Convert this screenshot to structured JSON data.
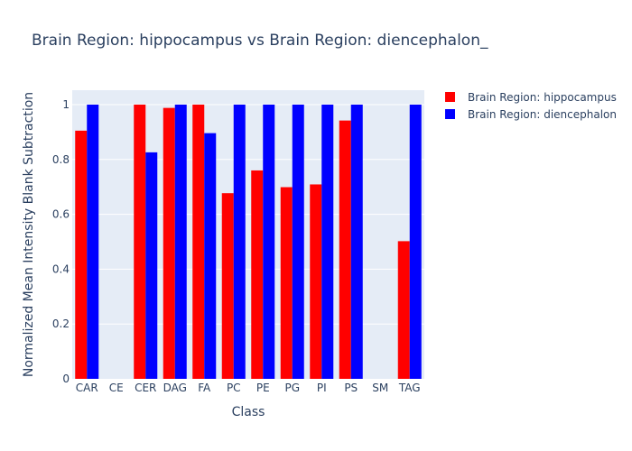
{
  "chart_data": {
    "type": "bar",
    "title": "Brain Region: hippocampus vs Brain Region: diencephalon_",
    "xlabel": "Class",
    "ylabel": "Normalized Mean Intensity Blank Subtraction",
    "categories": [
      "CAR",
      "CE",
      "CER",
      "DAG",
      "FA",
      "PC",
      "PE",
      "PG",
      "PI",
      "PS",
      "SM",
      "TAG"
    ],
    "series": [
      {
        "name": "Brain Region: hippocampus",
        "color": "#ff0000",
        "values": [
          0.905,
          0,
          1.0,
          0.988,
          1.0,
          0.677,
          0.76,
          0.699,
          0.709,
          0.942,
          0,
          0.502
        ]
      },
      {
        "name": "Brain Region: diencephalon",
        "color": "#0000ff",
        "values": [
          1.0,
          0,
          0.826,
          1.0,
          0.896,
          1.0,
          1.0,
          1.0,
          1.0,
          1.0,
          0,
          1.0
        ]
      }
    ],
    "yticks": [
      0,
      0.2,
      0.4,
      0.6,
      0.8,
      1
    ],
    "ylim": [
      0,
      1.0526
    ],
    "grid": true,
    "legend_position": "top-right",
    "plot_bg": "#e5ecf6"
  }
}
